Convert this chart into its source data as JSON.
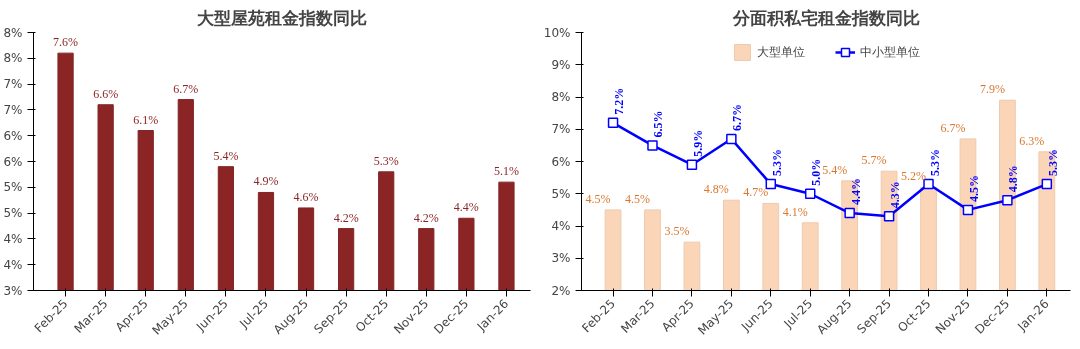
{
  "chart_data": [
    {
      "type": "bar",
      "title": "大型屋苑租金指数同比",
      "categories": [
        "Feb-25",
        "Mar-25",
        "Apr-25",
        "May-25",
        "Jun-25",
        "Jul-25",
        "Aug-25",
        "Sep-25",
        "Oct-25",
        "Nov-25",
        "Dec-25",
        "Jan-26"
      ],
      "values": [
        7.6,
        6.6,
        6.1,
        6.7,
        5.4,
        4.9,
        4.6,
        4.2,
        5.3,
        4.2,
        4.4,
        5.1
      ],
      "value_labels": [
        "7.6%",
        "6.6%",
        "6.1%",
        "6.7%",
        "5.4%",
        "4.9%",
        "4.6%",
        "4.2%",
        "5.3%",
        "4.2%",
        "4.4%",
        "5.1%"
      ],
      "color": "#8b2525",
      "ylim": [
        3,
        8
      ],
      "yticks": [
        {
          "value": 3,
          "label": "3%"
        },
        {
          "value": 3.5,
          "label": "4%"
        },
        {
          "value": 4,
          "label": "4%"
        },
        {
          "value": 4.5,
          "label": "5%"
        },
        {
          "value": 5,
          "label": "5%"
        },
        {
          "value": 5.5,
          "label": "6%"
        },
        {
          "value": 6,
          "label": "6%"
        },
        {
          "value": 6.5,
          "label": "7%"
        },
        {
          "value": 7,
          "label": "7%"
        },
        {
          "value": 7.5,
          "label": "8%"
        },
        {
          "value": 8,
          "label": "8%"
        }
      ],
      "grid": false
    },
    {
      "type": "bar",
      "title": "分面积私宅租金指数同比",
      "categories": [
        "Feb-25",
        "Mar-25",
        "Apr-25",
        "May-25",
        "Jun-25",
        "Jul-25",
        "Aug-25",
        "Sep-25",
        "Oct-25",
        "Nov-25",
        "Dec-25",
        "Jan-26"
      ],
      "series": [
        {
          "name": "大型单位",
          "type": "bar",
          "color": "#fbd5b8",
          "values": [
            4.5,
            4.5,
            3.5,
            4.8,
            4.7,
            4.1,
            5.4,
            5.7,
            5.2,
            6.7,
            7.9,
            6.3
          ],
          "value_labels": [
            "4.5%",
            "4.5%",
            "3.5%",
            "4.8%",
            "4.7%",
            "4.1%",
            "5.4%",
            "5.7%",
            "5.2%",
            "6.7%",
            "7.9%",
            "6.3%"
          ]
        },
        {
          "name": "中小型单位",
          "type": "line",
          "color": "#0000ff",
          "values": [
            7.2,
            6.5,
            5.9,
            6.7,
            5.3,
            5.0,
            4.4,
            4.3,
            5.3,
            4.5,
            4.8,
            5.3
          ],
          "value_labels": [
            "7.2%",
            "6.5%",
            "5.9%",
            "6.7%",
            "5.3%",
            "5.0%",
            "4.4%",
            "4.3%",
            "5.3%",
            "4.5%",
            "4.8%",
            "5.3%"
          ]
        }
      ],
      "ylim": [
        2,
        10
      ],
      "yticks": [
        {
          "value": 2,
          "label": "2%"
        },
        {
          "value": 3,
          "label": "3%"
        },
        {
          "value": 4,
          "label": "4%"
        },
        {
          "value": 5,
          "label": "5%"
        },
        {
          "value": 6,
          "label": "6%"
        },
        {
          "value": 7,
          "label": "7%"
        },
        {
          "value": 8,
          "label": "8%"
        },
        {
          "value": 9,
          "label": "9%"
        },
        {
          "value": 10,
          "label": "10%"
        }
      ],
      "marker": "square",
      "legend": "top",
      "grid": false
    }
  ]
}
